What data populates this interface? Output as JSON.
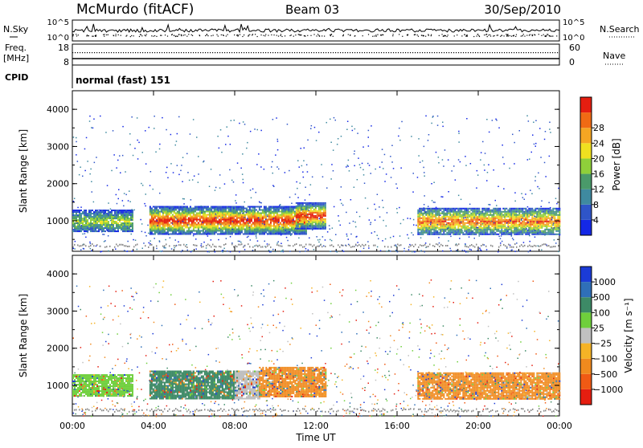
{
  "header": {
    "station": "McMurdo (fitACF)",
    "beam": "Beam 03",
    "date": "30/Sep/2010"
  },
  "status_panels": {
    "nsky_label": "N.Sky",
    "nsearch_label": "N.Search",
    "freq_label": "Freq.",
    "freq_unit": "[MHz]",
    "nave_label": "Nave",
    "cpid_label": "CPID",
    "cpid_value": "normal (fast) 151",
    "noise_ticks": [
      "10^5",
      "10^0"
    ],
    "freq_ticks": [
      "18",
      "8"
    ],
    "nave_ticks": [
      "60",
      "0"
    ]
  },
  "chart_data": [
    {
      "type": "heatmap",
      "name": "power",
      "ylabel": "Slant Range [km]",
      "xlabel": "",
      "xticks": [
        "00:00",
        "04:00",
        "08:00",
        "12:00",
        "16:00",
        "20:00",
        "00:00"
      ],
      "yticks": [
        1000,
        2000,
        3000,
        4000
      ],
      "x_range_hours": [
        0,
        24
      ],
      "y_range_km": [
        180,
        4500
      ],
      "colorbar": {
        "label": "Power [dB]",
        "ticks": [
          "4",
          "8",
          "12",
          "16",
          "20",
          "24",
          "28"
        ],
        "colors": [
          "#1428e6",
          "#2f55c8",
          "#3f8aa0",
          "#4a9a6a",
          "#8fcf3a",
          "#f0e020",
          "#f5a623",
          "#f06a14",
          "#e51e10"
        ]
      },
      "segments": [
        {
          "t0": 0.0,
          "t1": 3.0,
          "r0": 700,
          "r1": 1300,
          "level": "low"
        },
        {
          "t0": 3.8,
          "t1": 11.5,
          "r0": 650,
          "r1": 1400,
          "level": "high"
        },
        {
          "t0": 11.0,
          "t1": 12.5,
          "r0": 800,
          "r1": 1500,
          "level": "high"
        },
        {
          "t0": 17.0,
          "t1": 24.0,
          "r0": 650,
          "r1": 1350,
          "level": "mid"
        }
      ]
    },
    {
      "type": "heatmap",
      "name": "velocity",
      "ylabel": "Slant Range [km]",
      "xlabel": "Time UT",
      "xticks": [
        "00:00",
        "04:00",
        "08:00",
        "12:00",
        "16:00",
        "20:00",
        "00:00"
      ],
      "yticks": [
        1000,
        2000,
        3000,
        4000
      ],
      "x_range_hours": [
        0,
        24
      ],
      "y_range_km": [
        180,
        4500
      ],
      "colorbar": {
        "label": "Velocity [m s⁻¹]",
        "ticks": [
          "1000",
          "500",
          "100",
          "25",
          "−25",
          "−100",
          "−500",
          "−1000"
        ],
        "colors": [
          "#1b3bd6",
          "#2f6fb8",
          "#3d8a66",
          "#6fcf3c",
          "#c0c0c0",
          "#f5b326",
          "#f08a1e",
          "#f05a14",
          "#e51e10"
        ]
      },
      "segments": [
        {
          "t0": 0.0,
          "t1": 3.0,
          "r0": 700,
          "r1": 1300,
          "color": "#6fcf3c"
        },
        {
          "t0": 3.8,
          "t1": 8.0,
          "r0": 650,
          "r1": 1400,
          "color": "#3d8a66"
        },
        {
          "t0": 8.0,
          "t1": 9.2,
          "r0": 650,
          "r1": 1400,
          "color": "#c0c0c0"
        },
        {
          "t0": 9.2,
          "t1": 12.5,
          "r0": 700,
          "r1": 1500,
          "color": "#f08a1e"
        },
        {
          "t0": 17.0,
          "t1": 24.0,
          "r0": 650,
          "r1": 1350,
          "color": "#f08a1e"
        }
      ]
    }
  ]
}
